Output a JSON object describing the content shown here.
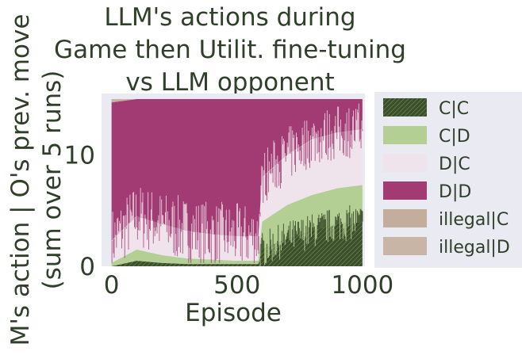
{
  "chart_data": {
    "type": "area",
    "title_lines": [
      "LLM's actions during",
      "Game then Utilit. fine-tuning",
      "vs LLM opponent"
    ],
    "xlabel": "Episode",
    "ylabel_lines": [
      "M's action | O's prev. move",
      "(sum over 5 runs)"
    ],
    "xlim": [
      -40,
      1010
    ],
    "ylim": [
      0,
      15.5
    ],
    "xticks": [
      0,
      500,
      1000
    ],
    "xtick_labels": [
      "0",
      "500",
      "1000"
    ],
    "yticks": [
      0,
      10
    ],
    "ytick_labels": [
      "0",
      "10"
    ],
    "grid": false,
    "legend_position": "right, outside plot",
    "stack_total": 15,
    "change_episode": 590,
    "x": [
      0,
      100,
      200,
      300,
      400,
      500,
      585,
      600,
      700,
      800,
      900,
      1000
    ],
    "series": [
      {
        "name": "C|C",
        "color": "#3c4f2d",
        "hatch": true,
        "values": [
          0,
          0.5,
          0.3,
          0.2,
          0.2,
          0.2,
          0.2,
          1.5,
          2.5,
          3.2,
          3.8,
          4.0
        ]
      },
      {
        "name": "C|D",
        "color": "#b3cf93",
        "hatch": false,
        "values": [
          0.3,
          1.0,
          0.7,
          0.5,
          0.4,
          0.3,
          0.3,
          2.5,
          3.0,
          3.2,
          3.2,
          3.3
        ]
      },
      {
        "name": "D|C",
        "color": "#f0e4ec",
        "hatch": false,
        "values": [
          2.0,
          3.0,
          2.8,
          2.5,
          2.3,
          2.2,
          2.2,
          4.0,
          4.5,
          5.0,
          5.0,
          5.0
        ]
      },
      {
        "name": "D|D",
        "color": "#a23a74",
        "hatch": false,
        "values": [
          12.4,
          10.5,
          11.2,
          11.8,
          12.1,
          12.3,
          12.3,
          7.0,
          5.0,
          3.6,
          3.0,
          2.7
        ]
      },
      {
        "name": "illegal|C",
        "color": "#c3ad9d",
        "hatch": false,
        "values": [
          0.2,
          0,
          0,
          0,
          0,
          0,
          0,
          0,
          0,
          0,
          0,
          0
        ]
      },
      {
        "name": "illegal|D",
        "color": "#c9b5a6",
        "hatch": false,
        "values": [
          0.1,
          0,
          0,
          0,
          0,
          0,
          0,
          0,
          0,
          0,
          0,
          0
        ]
      }
    ]
  }
}
